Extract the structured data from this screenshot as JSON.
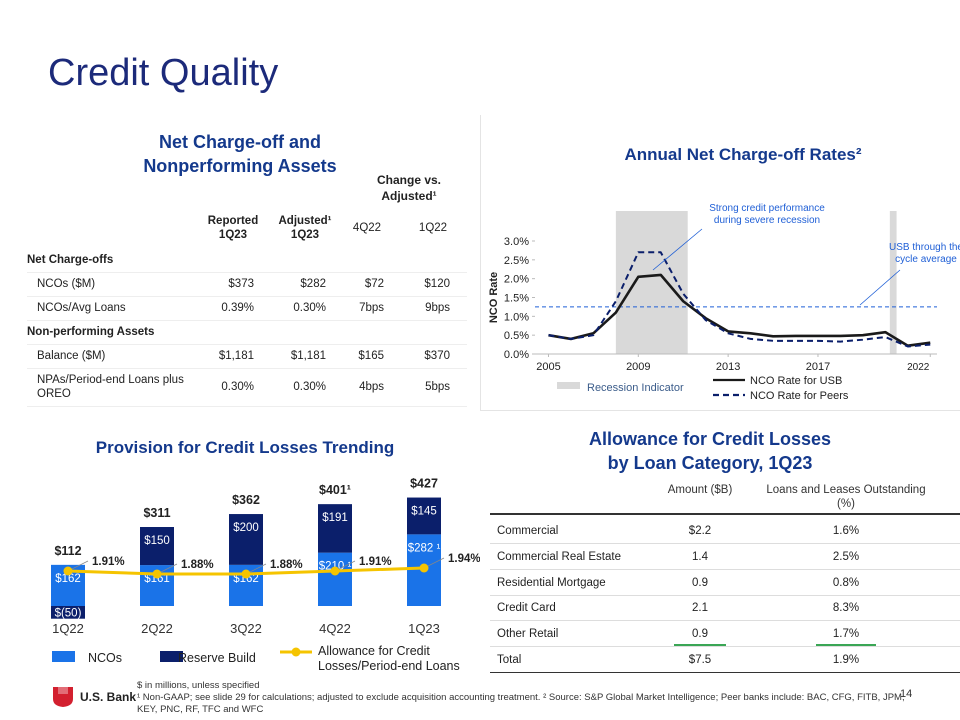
{
  "title": "Credit Quality",
  "nco_table": {
    "title_lines": [
      "Net Charge-off and",
      "Nonperforming Assets"
    ],
    "group_header": "Change vs. Adjusted¹",
    "columns": [
      "Reported 1Q23",
      "Adjusted¹ 1Q23",
      "4Q22",
      "1Q22"
    ],
    "rows": [
      {
        "label": "Net Charge-offs",
        "section": true
      },
      {
        "label": "NCOs  ($M)",
        "cells": [
          "$373",
          "$282",
          "$72",
          "$120"
        ]
      },
      {
        "label": "NCOs/Avg Loans",
        "cells": [
          "0.39%",
          "0.30%",
          "7bps",
          "9bps"
        ]
      },
      {
        "label": "Non-performing Assets",
        "section": true
      },
      {
        "label": "Balance ($M)",
        "cells": [
          "$1,181",
          "$1,181",
          "$165",
          "$370"
        ]
      },
      {
        "label": "NPAs/Period-end Loans plus OREO",
        "cells": [
          "0.30%",
          "0.30%",
          "4bps",
          "5bps"
        ]
      }
    ]
  },
  "chart_data": [
    {
      "type": "line",
      "title": "Annual Net Charge-off Rates²",
      "y_label": "NCO Rate",
      "x": [
        2005,
        2006,
        2007,
        2008,
        2009,
        2010,
        2011,
        2012,
        2013,
        2014,
        2015,
        2016,
        2017,
        2018,
        2019,
        2020,
        2021,
        2022
      ],
      "xlim": [
        2004.4,
        2022.3
      ],
      "xticks": [
        2005,
        2009,
        2013,
        2017,
        2022
      ],
      "ylim": [
        0,
        3
      ],
      "yticks": [
        {
          "value": 0,
          "label": "0.0%"
        },
        {
          "value": 0.5,
          "label": "0.5%"
        },
        {
          "value": 1,
          "label": "1.0%"
        },
        {
          "value": 1.5,
          "label": "1.5%"
        },
        {
          "value": 2,
          "label": "2.0%"
        },
        {
          "value": 2.5,
          "label": "2.5%"
        },
        {
          "value": 3,
          "label": "3.0%"
        }
      ],
      "series": [
        {
          "name": "NCO Rate for USB",
          "color": "#1a1a1a",
          "style": "solid",
          "values": [
            0.5,
            0.4,
            0.55,
            1.1,
            2.05,
            2.1,
            1.4,
            0.95,
            0.6,
            0.55,
            0.47,
            0.48,
            0.48,
            0.48,
            0.5,
            0.58,
            0.22,
            0.3
          ]
        },
        {
          "name": "NCO Rate for Peers",
          "color": "#0b1f6b",
          "style": "dashed",
          "values": [
            0.5,
            0.4,
            0.5,
            1.4,
            2.7,
            2.7,
            1.6,
            0.9,
            0.55,
            0.4,
            0.35,
            0.35,
            0.35,
            0.33,
            0.38,
            0.45,
            0.2,
            0.25
          ]
        }
      ],
      "reference_line": {
        "value": 1.25,
        "color": "#1f5fd6"
      },
      "recessions": {
        "name": "Recession Indicator",
        "color": "#d9d9d9",
        "spans": [
          [
            2008,
            2011.2
          ],
          [
            2020.2,
            2020.5
          ]
        ]
      },
      "annotations": [
        "Strong credit performance during severe recession",
        "USB through the cycle average"
      ]
    },
    {
      "type": "bar",
      "title": "Provision for Credit Losses Trending",
      "stacked": true,
      "categories": [
        "1Q22",
        "2Q22",
        "3Q22",
        "4Q22",
        "1Q23"
      ],
      "series": [
        {
          "name": "NCOs",
          "color": "#1a73e8",
          "values": [
            162,
            161,
            162,
            210,
            282
          ],
          "value_labels": [
            "$162",
            "$161",
            "$162",
            "$210 ¹",
            "$282 ¹"
          ]
        },
        {
          "name": "Reserve Build",
          "color": "#0b1f6b",
          "values": [
            -50,
            150,
            200,
            191,
            145
          ],
          "value_labels": [
            "$(50)",
            "$150",
            "$200",
            "$191",
            "$145"
          ]
        },
        {
          "name": "Allowance for Credit Losses/Period-end Loans",
          "type": "line",
          "color": "#f5c400",
          "values": [
            1.91,
            1.88,
            1.88,
            1.91,
            1.94
          ],
          "value_labels": [
            "1.91%",
            "1.88%",
            "1.88%",
            "1.91%",
            "1.94%"
          ]
        }
      ],
      "totals": [
        112,
        311,
        362,
        401,
        427
      ],
      "total_labels": [
        "$112",
        "$311",
        "$362",
        "$401¹",
        "$427"
      ]
    }
  ],
  "allowance_table": {
    "title_lines": [
      "Allowance for Credit Losses",
      "by Loan Category, 1Q23"
    ],
    "columns": [
      "Amount ($B)",
      "Loans and Leases Outstanding (%)"
    ],
    "rows": [
      [
        "Commercial",
        "$2.2",
        "1.6%"
      ],
      [
        "Commercial Real Estate",
        "1.4",
        "2.5%"
      ],
      [
        "Residential Mortgage",
        "0.9",
        "0.8%"
      ],
      [
        "Credit Card",
        "2.1",
        "8.3%"
      ],
      [
        "Other Retail",
        "0.9",
        "1.7%"
      ],
      [
        "Total",
        "$7.5",
        "1.9%"
      ]
    ],
    "highlight": {
      "row": 4,
      "color": "#3aa655"
    }
  },
  "footnotes": [
    "$ in millions, unless specified",
    "¹ Non-GAAP; see slide 29 for calculations; adjusted to exclude acquisition accounting treatment. ² Source: S&P Global Market Intelligence; Peer banks include: BAC, CFG, FITB, JPM, KEY, PNC, RF, TFC and WFC"
  ],
  "logo": "U.S. Bank",
  "page_number": "14"
}
